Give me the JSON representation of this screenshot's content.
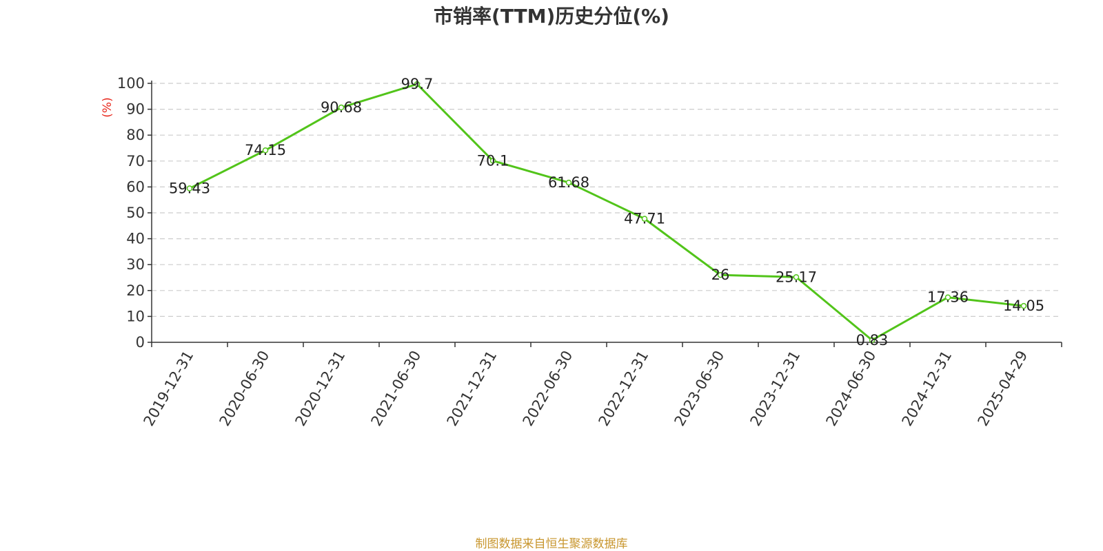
{
  "title": "市销率(TTM)历史分位(%)",
  "source": "制图数据来自恒生聚源数据库",
  "chart_data": {
    "type": "line",
    "title": "市销率(TTM)历史分位(%)",
    "ylabel": "(%)",
    "xlabel": "",
    "categories": [
      "2019-12-31",
      "2020-06-30",
      "2020-12-31",
      "2021-06-30",
      "2021-12-31",
      "2022-06-30",
      "2022-12-31",
      "2023-06-30",
      "2023-12-31",
      "2024-06-30",
      "2024-12-31",
      "2025-04-29"
    ],
    "series": [
      {
        "values": [
          59.43,
          74.15,
          90.68,
          99.7,
          70.1,
          61.68,
          47.71,
          26,
          25.17,
          0.83,
          17.36,
          14.05
        ],
        "labels": [
          "59.43",
          "74.15",
          "90.68",
          "99.7",
          "70.1",
          "61.68",
          "47.71",
          "26",
          "25.17",
          "0.83",
          "17.36",
          "14.05"
        ],
        "color": "#52c41a"
      }
    ],
    "ylim": [
      0,
      100
    ],
    "yticks": [
      "0",
      "10",
      "20",
      "30",
      "40",
      "50",
      "60",
      "70",
      "80",
      "90",
      "100"
    ],
    "grid": true,
    "legend": "none"
  }
}
